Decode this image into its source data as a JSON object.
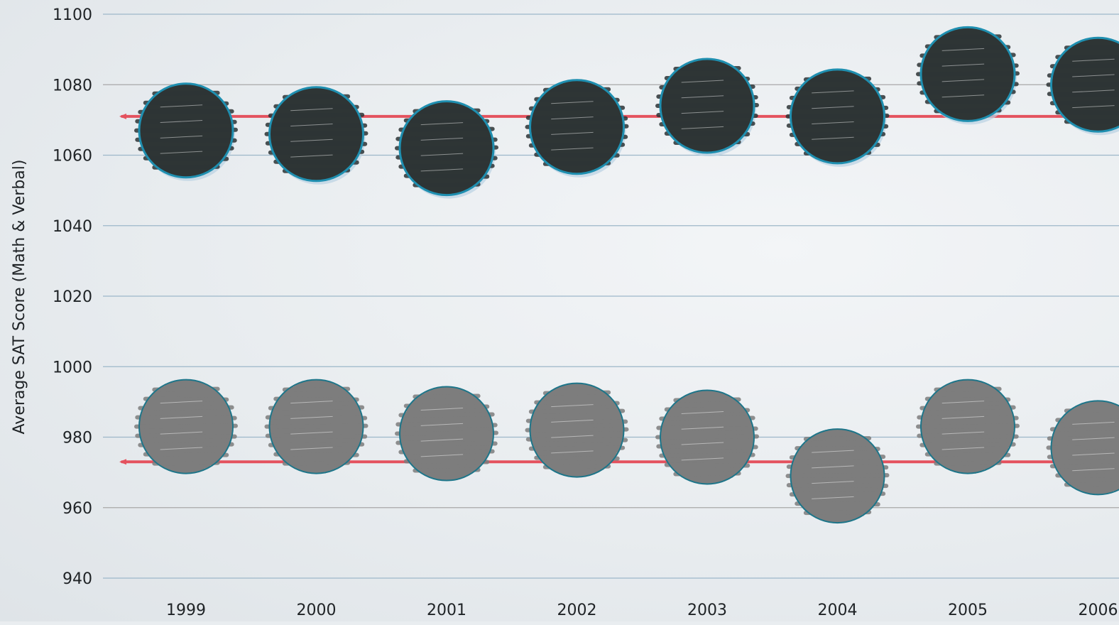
{
  "chart_data": {
    "type": "scatter",
    "title": "",
    "xlabel": "",
    "ylabel": "Average SAT Score (Math & Verbal)",
    "ylim": [
      940,
      1100
    ],
    "yticks": [
      940,
      960,
      980,
      1000,
      1020,
      1040,
      1060,
      1080,
      1100
    ],
    "categories": [
      "1999",
      "2000",
      "2001",
      "2002",
      "2003",
      "2004",
      "2005",
      "2006"
    ],
    "grid": true,
    "series": [
      {
        "marker_color": "#2d3436",
        "outline_color": "#1f8fb0",
        "values": [
          1067,
          1066,
          1062,
          1068,
          1074,
          1071,
          1083,
          1080
        ],
        "reference_line": 1071
      },
      {
        "marker_color": "#7d7d7d",
        "outline_color": "#1d7589",
        "values": [
          983,
          983,
          981,
          982,
          980,
          969,
          983,
          977
        ],
        "reference_line": 973
      }
    ],
    "reference_line_color": "#e4525e",
    "grid_color": "#9db7c9",
    "grid_color_dark": "#a8a8a8"
  }
}
